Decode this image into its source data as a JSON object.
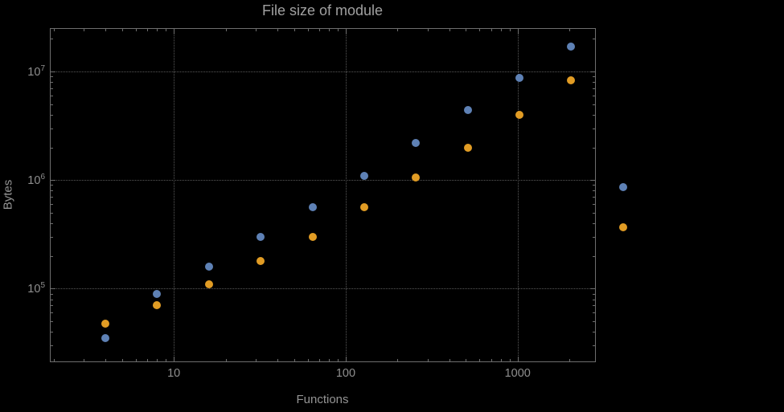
{
  "chart_data": {
    "type": "scatter",
    "title": "File size of module",
    "xlabel": "Functions",
    "ylabel": "Bytes",
    "x_scale": "log",
    "y_scale": "log",
    "xlim": [
      1.9,
      2820
    ],
    "ylim": [
      21400,
      25100000
    ],
    "grid": "dotted-at-major-ticks",
    "legend": "none",
    "x_ticks": [
      {
        "value": 10,
        "label": "10"
      },
      {
        "value": 100,
        "label": "100"
      },
      {
        "value": 1000,
        "label": "1000"
      }
    ],
    "y_ticks": [
      {
        "value": 100000,
        "base": "10",
        "exp": "5"
      },
      {
        "value": 1000000,
        "base": "10",
        "exp": "6"
      },
      {
        "value": 10000000,
        "base": "10",
        "exp": "7"
      }
    ],
    "x": [
      4,
      8,
      16,
      32,
      64,
      128,
      256,
      512,
      1024,
      2048,
      4096
    ],
    "series": [
      {
        "name": "series-blue",
        "color": "#5e81b5",
        "values": [
          35000,
          90000,
          160000,
          300000,
          560000,
          1100000,
          2200000,
          4400000,
          8800000,
          17000000,
          860000
        ]
      },
      {
        "name": "series-orange",
        "color": "#e19c24",
        "values": [
          48000,
          70000,
          110000,
          180000,
          300000,
          560000,
          1050000,
          2000000,
          4000000,
          8300000,
          370000
        ]
      }
    ]
  }
}
